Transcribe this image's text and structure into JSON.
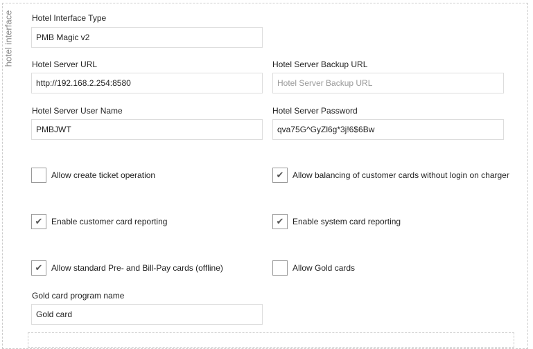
{
  "legend": "hotel interface",
  "fields": {
    "interface_type": {
      "label": "Hotel Interface Type",
      "value": "PMB Magic v2"
    },
    "server_url": {
      "label": "Hotel Server URL",
      "value": "http://192.168.2.254:8580"
    },
    "backup_url": {
      "label": "Hotel Server Backup URL",
      "value": "",
      "placeholder": "Hotel Server Backup URL"
    },
    "user_name": {
      "label": "Hotel Server User Name",
      "value": "PMBJWT"
    },
    "password": {
      "label": "Hotel Server Password",
      "value": "qva75G^GyZl6g*3j!6$6Bw"
    },
    "gold_name": {
      "label": "Gold card program name",
      "value": "Gold card"
    }
  },
  "checkboxes": [
    {
      "label": "Allow create ticket operation",
      "checked": false
    },
    {
      "label": "Allow balancing of customer cards without login on charger",
      "checked": true
    },
    {
      "label": "Enable customer card reporting",
      "checked": true
    },
    {
      "label": "Enable system card reporting",
      "checked": true
    },
    {
      "label": "Allow standard Pre- and Bill-Pay cards (offline)",
      "checked": true
    },
    {
      "label": "Allow Gold cards",
      "checked": false
    }
  ]
}
